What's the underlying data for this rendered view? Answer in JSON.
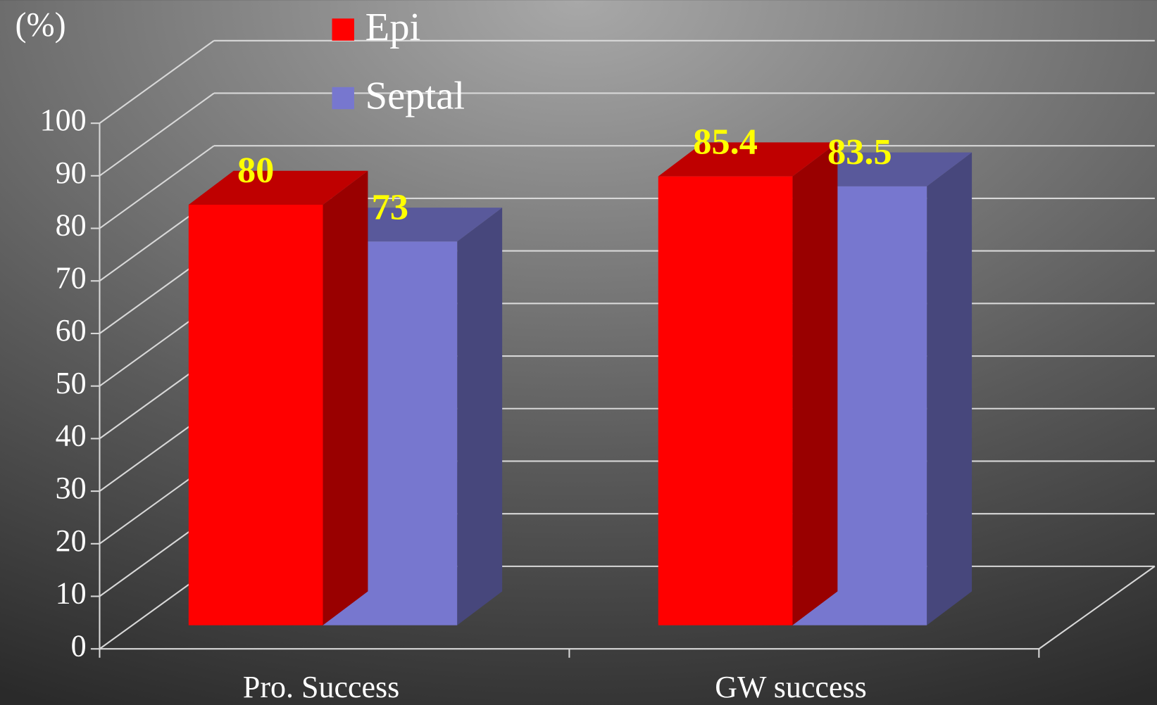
{
  "chart_data": {
    "type": "bar3d",
    "y_axis_label": "(%)",
    "categories": [
      "Pro. Success",
      "GW success"
    ],
    "series": [
      {
        "name": "Epi",
        "color": "#ff0000",
        "values": [
          80,
          85.4
        ]
      },
      {
        "name": "Septal",
        "color": "#7777cf",
        "values": [
          73,
          83.5
        ]
      }
    ],
    "ylim": [
      0,
      100
    ],
    "yticks": [
      0,
      10,
      20,
      30,
      40,
      50,
      60,
      70,
      80,
      90,
      100
    ],
    "grid": true,
    "legend": "top"
  }
}
